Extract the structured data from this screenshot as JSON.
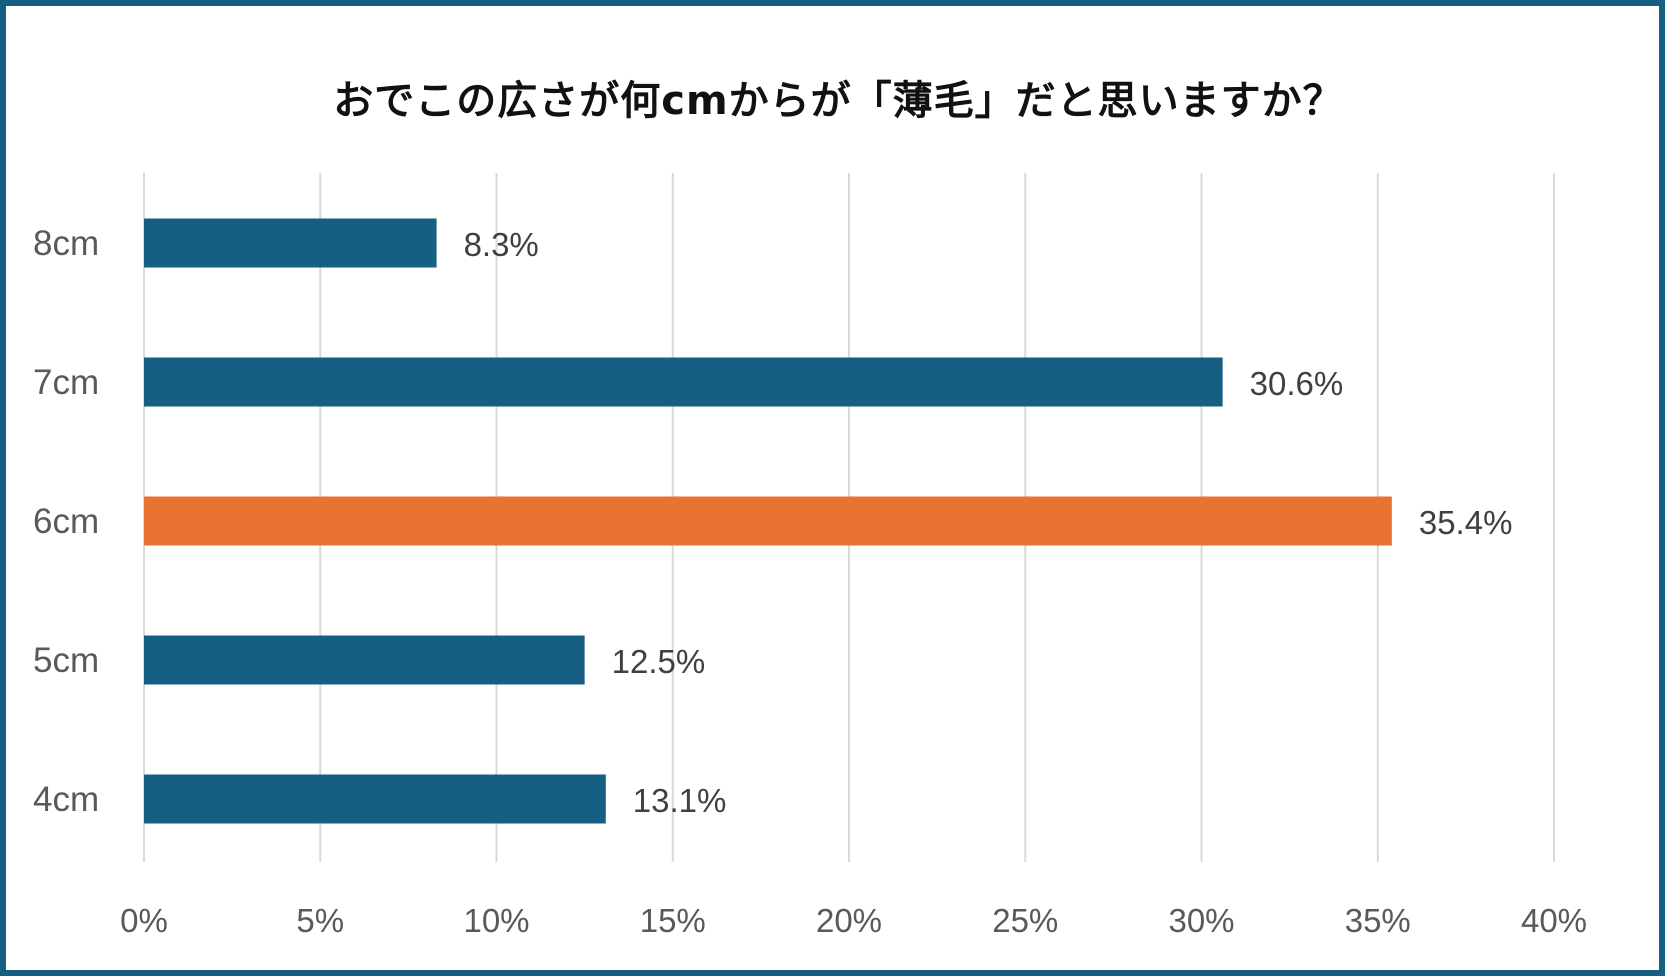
{
  "chart_data": {
    "type": "bar",
    "orientation": "horizontal",
    "title": "おでこの広さが何cmからが「薄毛」だと思いますか？",
    "categories": [
      "8cm",
      "7cm",
      "6cm",
      "5cm",
      "4cm"
    ],
    "values": [
      8.3,
      30.6,
      35.4,
      12.5,
      13.1
    ],
    "value_labels": [
      "8.3%",
      "30.6%",
      "35.4%",
      "12.5%",
      "13.1%"
    ],
    "xlim": [
      0,
      40
    ],
    "xticks": [
      0,
      5,
      10,
      15,
      20,
      25,
      30,
      35,
      40
    ],
    "xtick_labels": [
      "0%",
      "5%",
      "10%",
      "15%",
      "20%",
      "25%",
      "30%",
      "35%",
      "40%"
    ],
    "grid": "vertical",
    "colors": {
      "bar": "#175f82",
      "highlight": "#e97132",
      "frame": "#175f82",
      "grid": "#d9d9d9",
      "text": "#595959",
      "title": "#111111"
    },
    "highlight_index": 2
  }
}
